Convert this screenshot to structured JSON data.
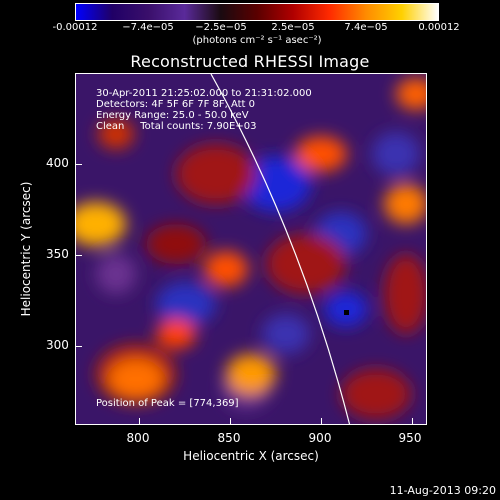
{
  "colorbar": {
    "labels": [
      "-0.00012",
      "−7.4e−05",
      "−2.5e−05",
      "2.5e−05",
      "7.4e−05",
      "0.00012"
    ],
    "units": "(photons cm⁻² s⁻¹ asec⁻²)",
    "colors": [
      "#0000ff",
      "#200066",
      "#3a0f6b",
      "#5a2a9a",
      "#1a0a10",
      "#5a0000",
      "#b00000",
      "#ff2a00",
      "#ff8a00",
      "#ffd000",
      "#ffffff"
    ]
  },
  "plot": {
    "title": "Reconstructed RHESSI Image",
    "info_lines": [
      "30-Apr-2011 21:25:02.000 to 21:31:02.000",
      "Detectors: 4F 5F 6F 7F 8F, Att 0",
      "Energy Range: 25.0 - 50.0 keV",
      "Clean     Total counts: 7.90E+03"
    ],
    "peak_text": "Position of Peak = [774,369]",
    "xlabel": "Heliocentric X (arcsec)",
    "ylabel": "Heliocentric Y (arcsec)",
    "x_ticks": [
      "800",
      "850",
      "900",
      "950"
    ],
    "y_ticks": [
      "300",
      "350",
      "400"
    ]
  },
  "footer": {
    "timestamp": "11-Aug-2013 09:20"
  }
}
